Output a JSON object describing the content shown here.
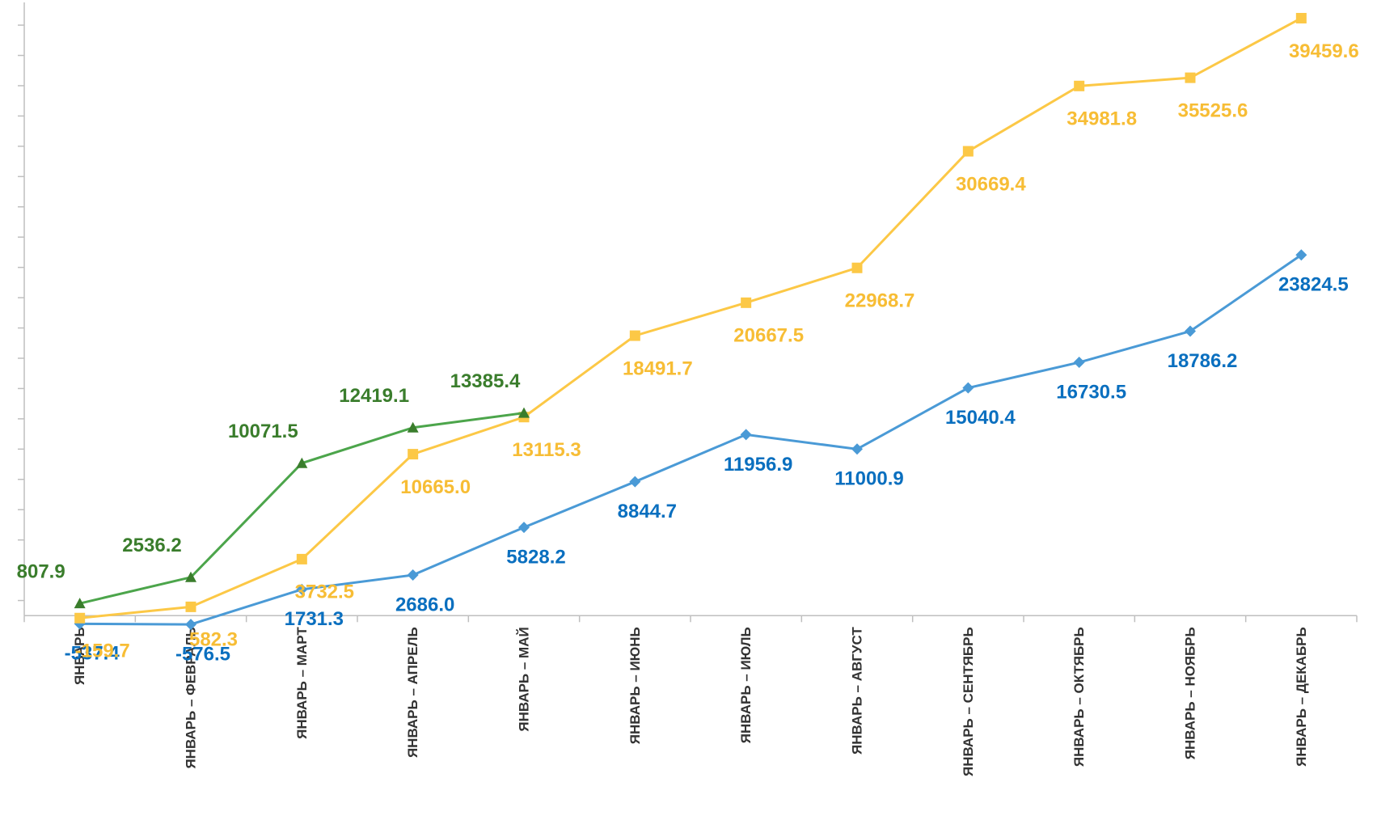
{
  "chart_data": {
    "type": "line",
    "categories": [
      "ЯНВАРЬ",
      "ЯНВАРЬ – ФЕВРАЛЬ",
      "ЯНВАРЬ – МАРТ",
      "ЯНВАРЬ – АПРЕЛЬ",
      "ЯНВАРЬ – МАЙ",
      "ЯНВАРЬ – ИЮНЬ",
      "ЯНВАРЬ – ИЮЛЬ",
      "ЯНВАРЬ – АВГУСТ",
      "ЯНВАРЬ – СЕНТЯБРЬ",
      "ЯНВАРЬ – ОКТЯБРЬ",
      "ЯНВАРЬ – НОЯБРЬ",
      "ЯНВАРЬ – ДЕКАБРЬ"
    ],
    "series": [
      {
        "color": "#4a9ad6",
        "label_color": "#0a6fbf",
        "marker": "diamond",
        "values": [
          -537.4,
          -576.5,
          1731.3,
          2686.0,
          5828.2,
          8844.7,
          11956.9,
          11000.9,
          15040.4,
          16730.5,
          18786.2,
          23824.5
        ],
        "value_labels": [
          "-537.4",
          "-576.5",
          "1731.3",
          "2686.0",
          "5828.2",
          "8844.7",
          "11956.9",
          "11000.9",
          "15040.4",
          "16730.5",
          "18786.2",
          "23824.5"
        ]
      },
      {
        "color": "#fcc846",
        "label_color": "#f7bd35",
        "marker": "square",
        "values": [
          -159.7,
          582.3,
          3732.5,
          10665.0,
          13115.3,
          18491.7,
          20667.5,
          22968.7,
          30669.4,
          34981.8,
          35525.6,
          39459.6
        ],
        "value_labels": [
          "-159.7",
          "582.3",
          "3732.5",
          "10665.0",
          "13115.3",
          "18491.7",
          "20667.5",
          "22968.7",
          "30669.4",
          "34981.8",
          "35525.6",
          "39459.6"
        ]
      },
      {
        "color": "#4ca54b",
        "label_color": "#3a7d2c",
        "marker": "triangle",
        "values": [
          807.9,
          2536.2,
          10071.5,
          12419.1,
          13385.4,
          null,
          null,
          null,
          null,
          null,
          null,
          null
        ],
        "value_labels": [
          "807.9",
          "2536.2",
          "10071.5",
          "12419.1",
          "13385.4",
          null,
          null,
          null,
          null,
          null,
          null,
          null
        ]
      }
    ],
    "ylim": [
      -1000,
      40500
    ],
    "yticks": [
      1000,
      3000,
      5000,
      7000,
      9000,
      11000,
      13000,
      15000,
      17000,
      19000,
      21000,
      23000,
      25000,
      27000,
      29000,
      31000,
      33000,
      35000,
      37000,
      39000
    ]
  }
}
